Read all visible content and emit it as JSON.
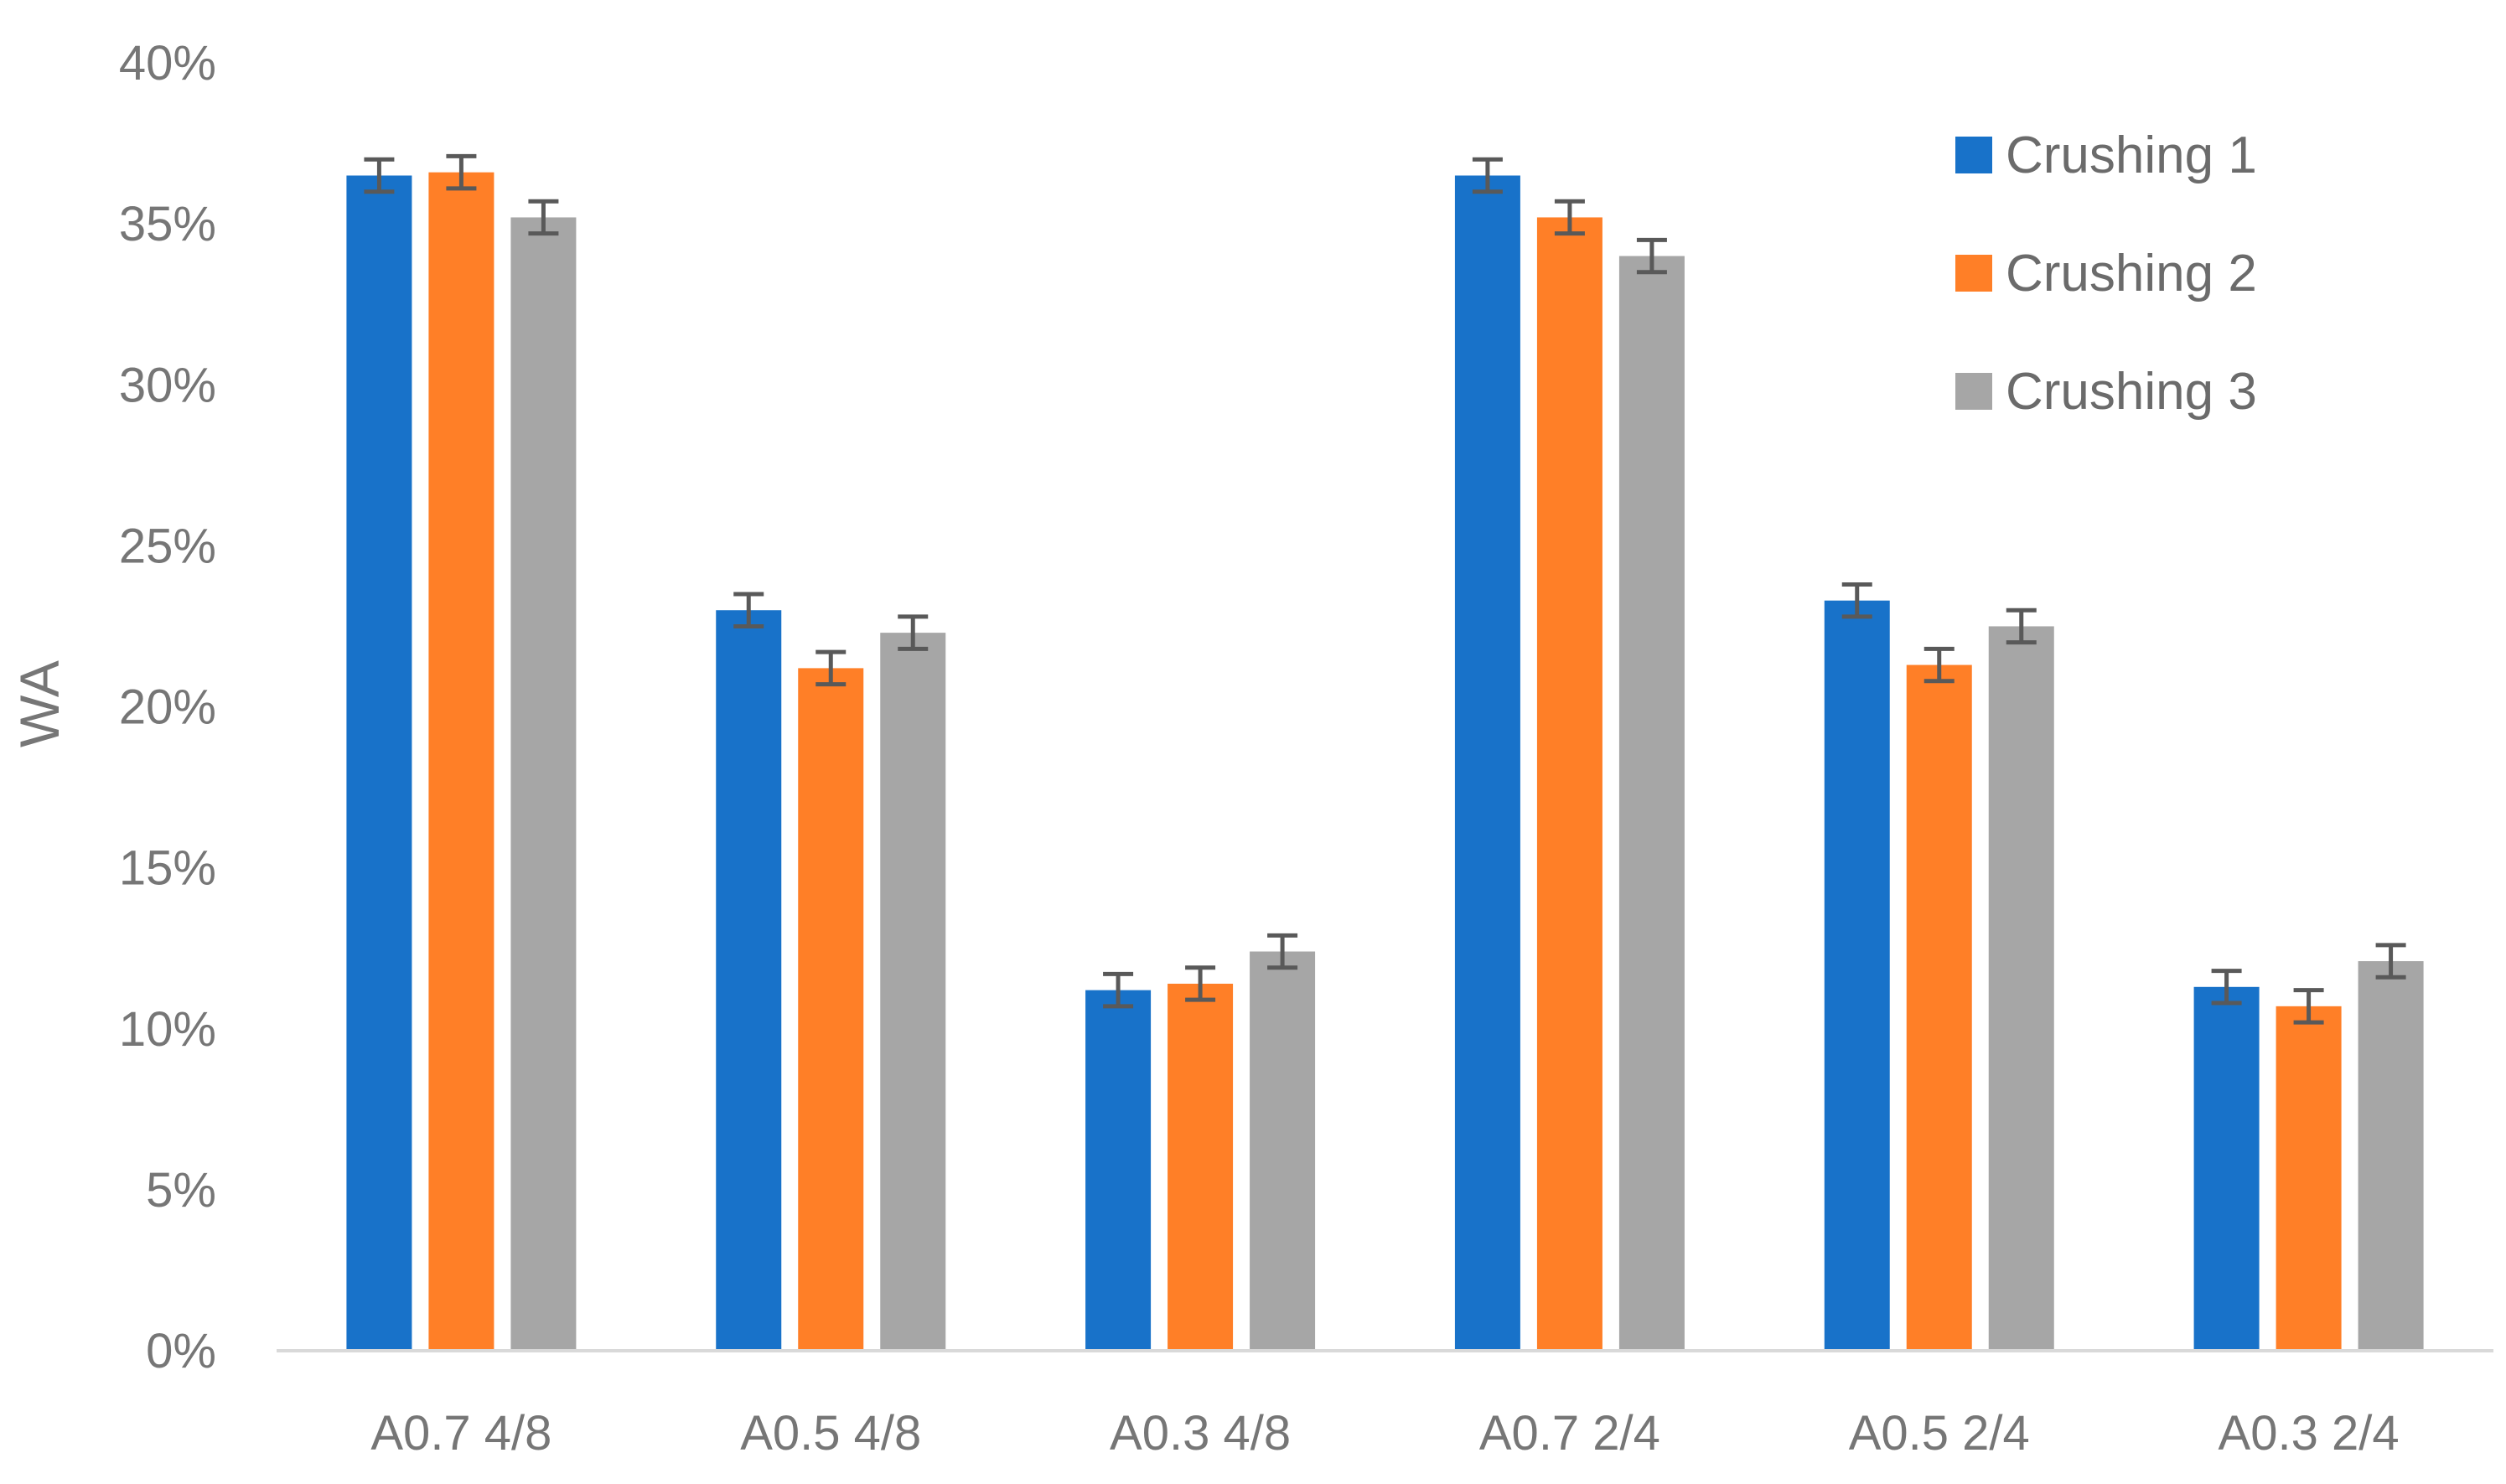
{
  "chart_data": {
    "type": "bar",
    "title": "",
    "xlabel": "",
    "ylabel": "WA",
    "ylim": [
      0,
      0.4
    ],
    "yticks": [
      "0%",
      "5%",
      "10%",
      "15%",
      "20%",
      "25%",
      "30%",
      "35%",
      "40%"
    ],
    "grid": false,
    "legend_position": "top-right",
    "categories": [
      "A0.7 4/8",
      "A0.5 4/8",
      "A0.3 4/8",
      "A0.7 2/4",
      "A0.5 2/4",
      "A0.3 2/4"
    ],
    "series": [
      {
        "name": "Crushing 1",
        "color": "#1872C9",
        "values": [
          0.365,
          0.23,
          0.112,
          0.365,
          0.233,
          0.113
        ],
        "errors": [
          0.005,
          0.005,
          0.005,
          0.005,
          0.005,
          0.005
        ]
      },
      {
        "name": "Crushing 2",
        "color": "#FF7F27",
        "values": [
          0.366,
          0.212,
          0.114,
          0.352,
          0.213,
          0.107
        ],
        "errors": [
          0.005,
          0.005,
          0.005,
          0.005,
          0.005,
          0.005
        ]
      },
      {
        "name": "Crushing 3",
        "color": "#A6A6A6",
        "values": [
          0.352,
          0.223,
          0.124,
          0.34,
          0.225,
          0.121
        ],
        "errors": [
          0.005,
          0.005,
          0.005,
          0.005,
          0.005,
          0.005
        ]
      }
    ],
    "colors": {
      "axis": "#D9D9D9",
      "error_bar": "#595959",
      "text": "#767676"
    }
  }
}
